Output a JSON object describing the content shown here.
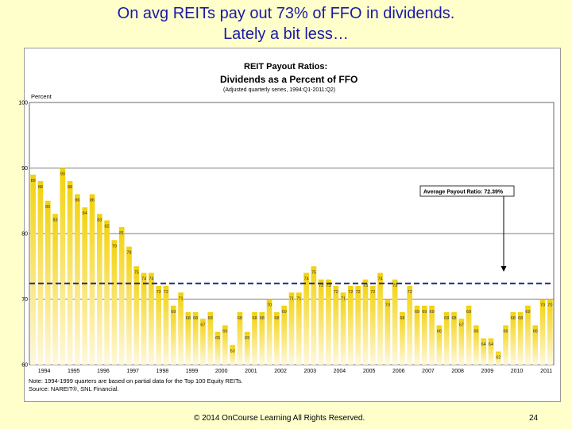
{
  "slide": {
    "title_line1": "On avg REITs pay out 73% of FFO in dividends.",
    "title_line2": "Lately a bit less…",
    "footer": "© 2014 OnCourse Learning All Rights Reserved.",
    "page_number": "24"
  },
  "colors": {
    "background": "#ffffcc",
    "title": "#1a1aa6",
    "bar_top": "#f3d20a",
    "bar_bottom": "#fff8dc",
    "average_line": "#1f2a78"
  },
  "chart_data": {
    "type": "bar",
    "title": "REIT Payout Ratios:",
    "subtitle": "Dividends as a Percent of FFO",
    "subtitle2": "(Adjusted quarterly series, 1994:Q1-2011:Q2)",
    "ylabel": "Percent",
    "ylim": [
      60,
      100
    ],
    "yticks": [
      "60",
      "70",
      "80",
      "90",
      "100"
    ],
    "grid": true,
    "year_labels": [
      "1994",
      "1995",
      "1996",
      "1997",
      "1998",
      "1999",
      "2000",
      "2001",
      "2002",
      "2003",
      "2004",
      "2005",
      "2006",
      "2007",
      "2008",
      "2009",
      "2010",
      "2011"
    ],
    "values": [
      89,
      88,
      85,
      83,
      90,
      88,
      86,
      84,
      86,
      83,
      82,
      79,
      81,
      78,
      75,
      74,
      74,
      72,
      72,
      69,
      71,
      68,
      68,
      67,
      68,
      65,
      66,
      63,
      68,
      65,
      68,
      68,
      70,
      68,
      69,
      71,
      71,
      74,
      75,
      73,
      73,
      72,
      71,
      72,
      72,
      73,
      72,
      74,
      70,
      73,
      68,
      72,
      69,
      69,
      69,
      66,
      68,
      68,
      67,
      69,
      66,
      64,
      64,
      62,
      66,
      68,
      68,
      69,
      66,
      70,
      70
    ],
    "labels": [
      "89",
      "88",
      "85",
      "83",
      "90",
      "88",
      "86",
      "84",
      "86",
      "83",
      "82",
      "79",
      "81",
      "78",
      "75",
      "74",
      "74",
      "72",
      "72",
      "69",
      "71",
      "68",
      "68",
      "67",
      "68",
      "65",
      "66",
      "63",
      "68",
      "65",
      "68",
      "68",
      "70",
      "68",
      "69",
      "71",
      "71",
      "74",
      "75",
      "73",
      "73",
      "72",
      "71",
      "72",
      "72",
      "73",
      "72",
      "74",
      "70",
      "73",
      "68",
      "72",
      "69",
      "69",
      "69",
      "66",
      "68",
      "68",
      "67",
      "69",
      "66",
      "64",
      "64",
      "62",
      "66",
      "68",
      "68",
      "69",
      "66",
      "70",
      "70"
    ],
    "average": 72.39,
    "annotation": "Average Payout Ratio: 72.39%",
    "notes": [
      "Note: 1994-1999 quarters are based on partial data for the Top 100 Equity REITs.",
      "Source: NAREIT®, SNL Financial."
    ]
  }
}
